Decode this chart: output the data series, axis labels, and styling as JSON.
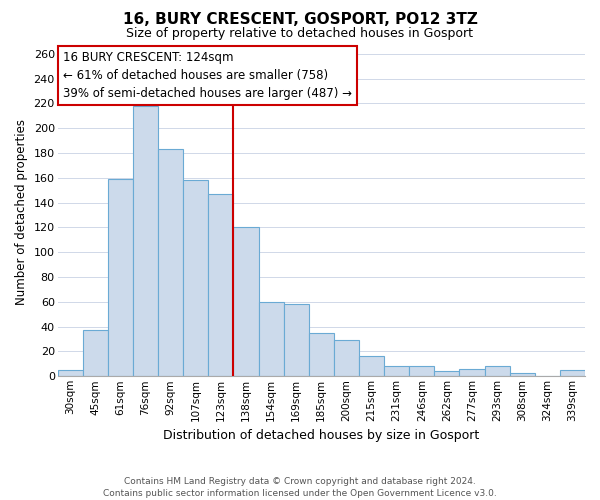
{
  "title": "16, BURY CRESCENT, GOSPORT, PO12 3TZ",
  "subtitle": "Size of property relative to detached houses in Gosport",
  "xlabel": "Distribution of detached houses by size in Gosport",
  "ylabel": "Number of detached properties",
  "bin_labels": [
    "30sqm",
    "45sqm",
    "61sqm",
    "76sqm",
    "92sqm",
    "107sqm",
    "123sqm",
    "138sqm",
    "154sqm",
    "169sqm",
    "185sqm",
    "200sqm",
    "215sqm",
    "231sqm",
    "246sqm",
    "262sqm",
    "277sqm",
    "293sqm",
    "308sqm",
    "324sqm",
    "339sqm"
  ],
  "bar_heights": [
    5,
    37,
    159,
    218,
    183,
    158,
    147,
    120,
    60,
    58,
    35,
    29,
    16,
    8,
    8,
    4,
    6,
    8,
    3,
    0,
    5
  ],
  "bar_color": "#ccdaeb",
  "bar_edge_color": "#6aaad4",
  "vline_x_index": 6,
  "vline_color": "#cc0000",
  "annotation_title": "16 BURY CRESCENT: 124sqm",
  "annotation_line1": "← 61% of detached houses are smaller (758)",
  "annotation_line2": "39% of semi-detached houses are larger (487) →",
  "annotation_box_color": "#ffffff",
  "annotation_box_edge": "#cc0000",
  "ylim": [
    0,
    265
  ],
  "yticks": [
    0,
    20,
    40,
    60,
    80,
    100,
    120,
    140,
    160,
    180,
    200,
    220,
    240,
    260
  ],
  "footer_line1": "Contains HM Land Registry data © Crown copyright and database right 2024.",
  "footer_line2": "Contains public sector information licensed under the Open Government Licence v3.0.",
  "bg_color": "#ffffff",
  "grid_color": "#d0d8e8"
}
